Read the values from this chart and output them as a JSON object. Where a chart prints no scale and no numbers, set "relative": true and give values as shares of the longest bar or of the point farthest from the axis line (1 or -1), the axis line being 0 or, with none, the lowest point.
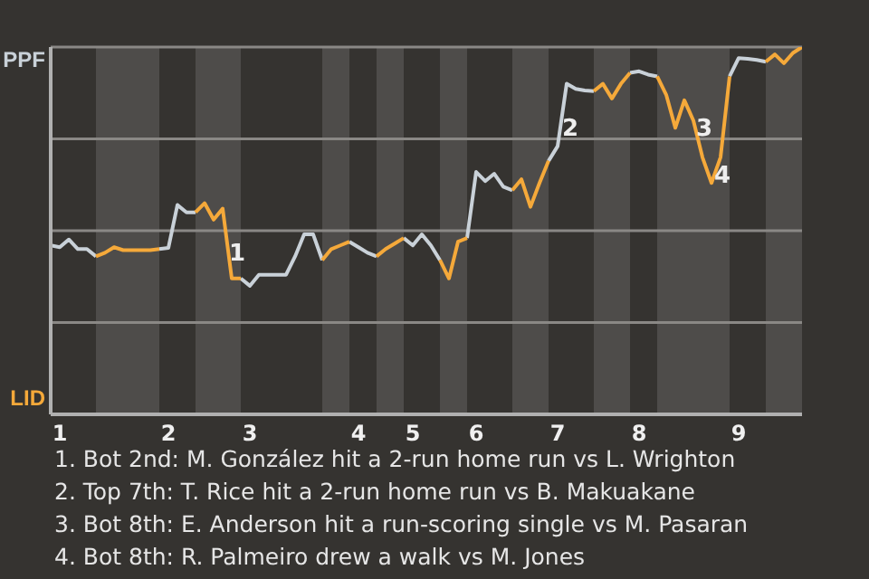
{
  "chart_data": {
    "type": "line",
    "relative": true,
    "legend": false,
    "marker": "none",
    "line_style": "solid",
    "categories": [
      null,
      "1",
      null,
      null,
      null,
      null,
      null,
      null,
      null,
      null,
      null,
      null,
      null,
      "2",
      null,
      null,
      null,
      null,
      null,
      null,
      null,
      null,
      "3",
      null,
      null,
      null,
      null,
      null,
      null,
      null,
      null,
      null,
      null,
      null,
      "4",
      null,
      null,
      null,
      null,
      null,
      "5",
      null,
      null,
      null,
      null,
      null,
      null,
      "6",
      null,
      null,
      null,
      null,
      null,
      null,
      null,
      null,
      "7",
      null,
      null,
      null,
      null,
      null,
      null,
      null,
      null,
      "8",
      null,
      null,
      null,
      null,
      null,
      null,
      null,
      null,
      null,
      null,
      "9",
      null,
      null,
      null,
      null,
      null,
      null,
      null
    ],
    "series": [
      {
        "color": "#c9d1d8",
        "values": [
          0.46,
          0.455,
          0.476,
          0.45,
          0.45,
          0.43,
          null,
          null,
          null,
          null,
          null,
          null,
          0.45,
          0.453,
          0.57,
          0.55,
          0.55,
          null,
          null,
          null,
          null,
          0.37,
          0.35,
          0.38,
          0.38,
          0.38,
          0.38,
          0.43,
          0.49,
          0.49,
          0.42,
          null,
          null,
          0.47,
          0.455,
          0.44,
          0.43,
          null,
          null,
          0.48,
          0.46,
          0.49,
          0.46,
          0.42,
          null,
          null,
          0.48,
          0.66,
          0.635,
          0.655,
          0.62,
          0.61,
          null,
          null,
          null,
          0.69,
          0.73,
          0.9,
          0.886,
          0.882,
          0.88,
          null,
          null,
          null,
          0.93,
          0.934,
          0.925,
          0.92,
          null,
          null,
          null,
          null,
          null,
          null,
          null,
          0.92,
          0.97,
          0.968,
          0.965,
          0.96,
          null,
          null,
          null,
          null
        ]
      },
      {
        "color": "#f5a93a",
        "values": [
          null,
          null,
          null,
          null,
          null,
          0.43,
          0.44,
          0.455,
          0.447,
          0.447,
          0.447,
          0.447,
          0.45,
          null,
          null,
          null,
          0.55,
          0.575,
          0.53,
          0.56,
          0.37,
          0.37,
          null,
          null,
          null,
          null,
          null,
          null,
          null,
          null,
          0.42,
          0.45,
          0.46,
          0.47,
          null,
          null,
          0.43,
          0.45,
          0.465,
          0.48,
          null,
          null,
          null,
          0.42,
          0.37,
          0.47,
          0.48,
          null,
          null,
          null,
          null,
          0.61,
          0.64,
          0.565,
          0.63,
          0.69,
          null,
          null,
          null,
          null,
          0.88,
          0.9,
          0.86,
          0.9,
          0.93,
          null,
          null,
          0.92,
          0.87,
          0.78,
          0.855,
          0.8,
          0.7,
          0.63,
          0.7,
          0.92,
          null,
          null,
          null,
          0.96,
          0.98,
          0.956,
          0.984,
          1
        ]
      }
    ],
    "ref_lines": [
      {
        "axis": "y",
        "value": 0.25,
        "color": "#8a8885"
      },
      {
        "axis": "y",
        "value": 0.5,
        "color": "#8a8885"
      },
      {
        "axis": "y",
        "value": 0.75,
        "color": "#8a8885"
      },
      {
        "axis": "y",
        "value": 1,
        "color": "#8a8885"
      }
    ],
    "annotations": [
      "PPF",
      "LID",
      "1",
      "2",
      "3",
      "4",
      "1. Bot 2nd: M. González hit a 2-run home run vs L. Wrighton",
      "2. Top 7th: T. Rice hit a 2-run home run vs B. Makuakane",
      "3. Bot 8th: E. Anderson hit a run-scoring single vs M. Pasaran",
      "4. Bot 8th: R. Palmeiro drew a walk vs M. Jones"
    ]
  }
}
